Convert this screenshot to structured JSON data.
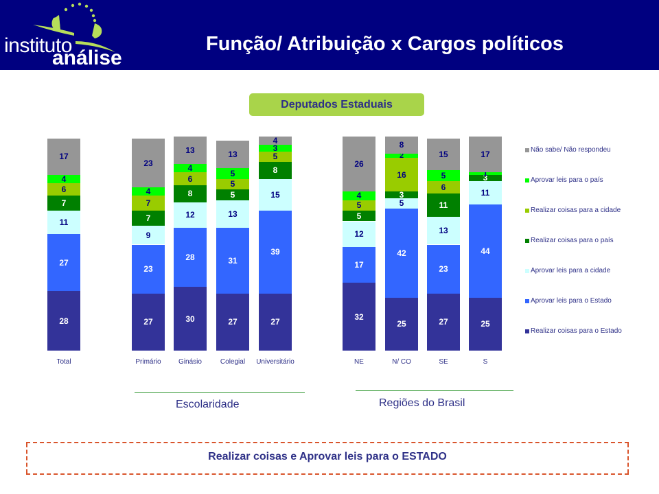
{
  "header": {
    "logo_line1": "instituto",
    "logo_line2": "análise",
    "title": "Função/ Atribuição x Cargos políticos"
  },
  "badge": "Deputados Estaduais",
  "groups": {
    "escolaridade": "Escolaridade",
    "regioes": "Regiões do Brasil"
  },
  "footer": "Realizar coisas e Aprovar leis para o ESTADO",
  "colors": {
    "realizar_estado": "#333399",
    "aprovar_estado": "#3366ff",
    "aprovar_cidade": "#ccffff",
    "realizar_pais": "#008000",
    "realizar_cidade": "#99cc00",
    "aprovar_pais": "#00ff00",
    "nao_sabe": "#969696"
  },
  "chart_data": {
    "type": "bar",
    "stacked": true,
    "title": "Deputados Estaduais",
    "xlabel": "",
    "ylabel": "",
    "ylim": [
      0,
      100
    ],
    "grid": false,
    "legend_position": "right",
    "categories": [
      "Total",
      "Primário",
      "Ginásio",
      "Colegial",
      "Universitário",
      "NE",
      "N/ CO",
      "SE",
      "S"
    ],
    "series": [
      {
        "name": "Realizar coisas para o Estado",
        "color": "#333399",
        "values": [
          28,
          27,
          30,
          27,
          27,
          32,
          25,
          27,
          25
        ]
      },
      {
        "name": "Aprovar leis para o Estado",
        "color": "#3366ff",
        "values": [
          27,
          23,
          28,
          31,
          39,
          17,
          42,
          23,
          44
        ]
      },
      {
        "name": "Aprovar leis para a cidade",
        "color": "#ccffff",
        "values": [
          11,
          9,
          12,
          13,
          15,
          12,
          5,
          13,
          11
        ]
      },
      {
        "name": "Realizar coisas para o país",
        "color": "#008000",
        "values": [
          7,
          7,
          8,
          5,
          8,
          5,
          3,
          11,
          3
        ]
      },
      {
        "name": "Realizar coisas para a cidade",
        "color": "#99cc00",
        "values": [
          6,
          7,
          6,
          5,
          5,
          5,
          16,
          6,
          0
        ]
      },
      {
        "name": "Aprovar leis para o país",
        "color": "#00ff00",
        "values": [
          4,
          4,
          4,
          5,
          3,
          4,
          2,
          5,
          1
        ]
      },
      {
        "name": "Não sabe/ Não respondeu",
        "color": "#969696",
        "values": [
          17,
          23,
          13,
          13,
          4,
          26,
          8,
          15,
          17
        ]
      }
    ],
    "legend": [
      "Não sabe/ Não respondeu",
      "Aprovar leis para o país",
      "Realizar coisas para a cidade",
      "Realizar coisas para o país",
      "Aprovar leis para a cidade",
      "Aprovar leis para o Estado",
      "Realizar coisas para o Estado"
    ],
    "group_labels": [
      {
        "label": "Escolaridade",
        "categories": [
          "Primário",
          "Ginásio",
          "Colegial",
          "Universitário"
        ]
      },
      {
        "label": "Regiões do Brasil",
        "categories": [
          "NE",
          "N/ CO",
          "SE",
          "S"
        ]
      }
    ]
  }
}
